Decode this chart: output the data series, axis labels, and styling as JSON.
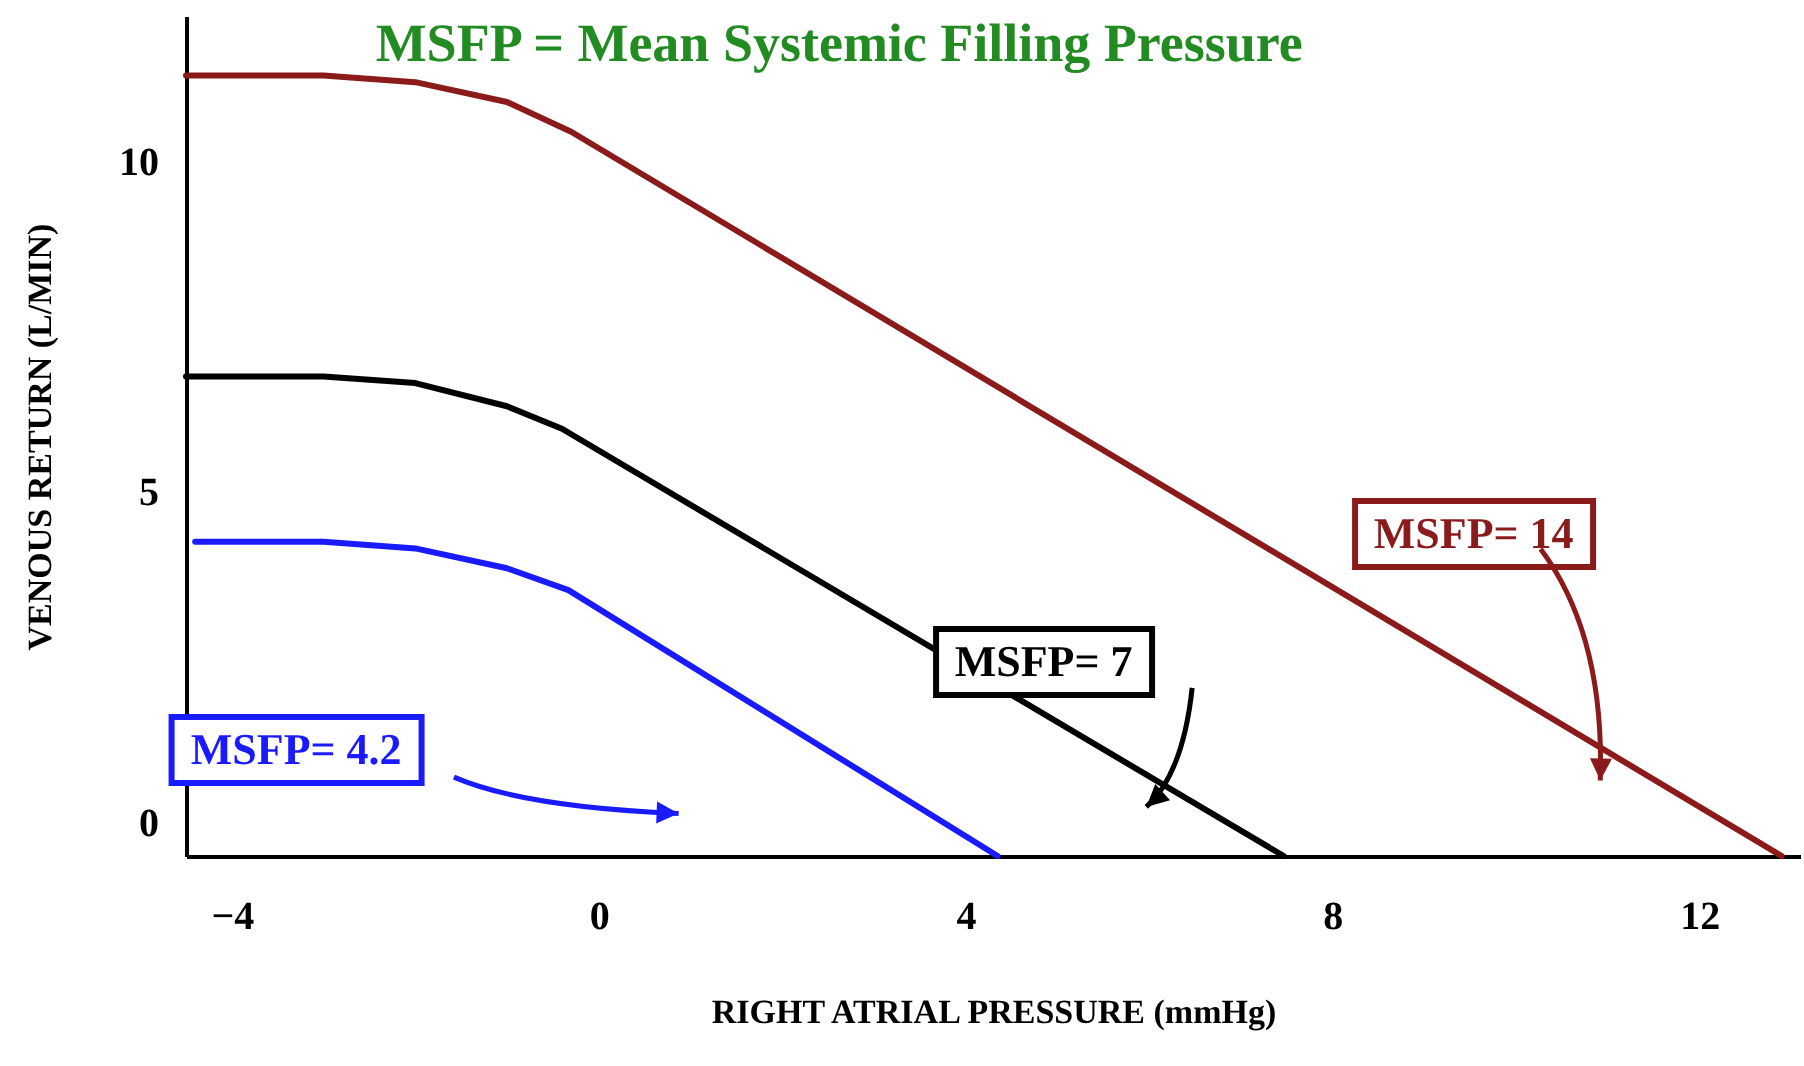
{
  "chart_data": {
    "type": "line",
    "title": "MSFP = Mean Systemic Filling Pressure",
    "xlabel": "RIGHT ATRIAL PRESSURE  (mmHg)",
    "ylabel": "VENOUS RETURN (L/MIN)",
    "xlim": [
      -4.5,
      13.1
    ],
    "xticks": [
      -4,
      0,
      4,
      8,
      12
    ],
    "ylim": [
      -0.5,
      12.2
    ],
    "yticks": [
      0,
      5,
      10
    ],
    "grid": false,
    "marker": "none",
    "line_style": "solid",
    "series": [
      {
        "color": "#8b1a1a",
        "x": [
          -4.5,
          -3,
          -2,
          -1,
          -0.3,
          12.9
        ],
        "values": [
          11.3,
          11.3,
          11.2,
          10.9,
          10.45,
          -0.5
        ]
      },
      {
        "color": "#000000",
        "x": [
          -4.5,
          -3,
          -2,
          -1,
          -0.4,
          7.47
        ],
        "values": [
          6.75,
          6.75,
          6.65,
          6.3,
          5.96,
          -0.5
        ]
      },
      {
        "color": "#1a1aff",
        "x": [
          -4.4,
          -3,
          -2,
          -1,
          -0.33,
          4.35
        ],
        "values": [
          4.25,
          4.25,
          4.15,
          3.85,
          3.52,
          -0.5
        ]
      }
    ],
    "annotations": [
      "MSFP= 14",
      "MSFP= 7",
      "MSFP= 4.2"
    ]
  }
}
